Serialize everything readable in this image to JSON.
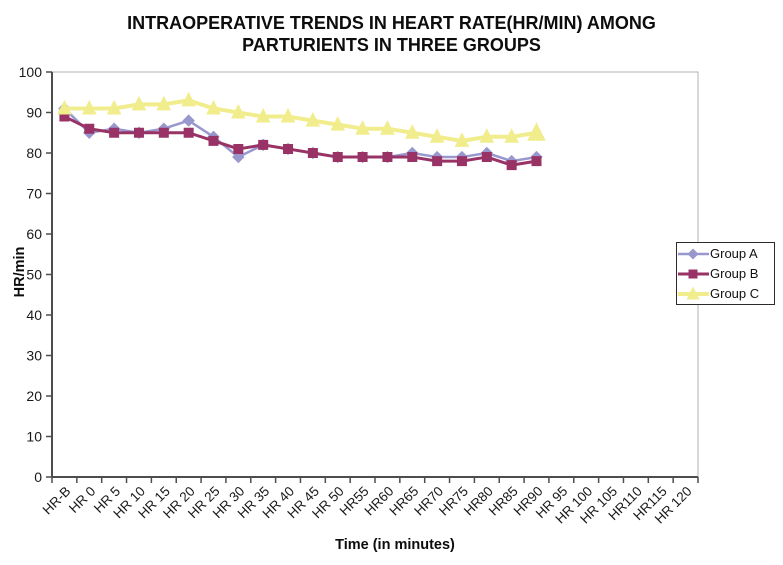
{
  "chart_data": {
    "type": "line",
    "title_line1": "INTRAOPERATIVE TRENDS IN HEART RATE(HR/MIN) AMONG",
    "title_line2": "PARTURIENTS IN THREE GROUPS",
    "xlabel": "Time (in minutes)",
    "ylabel": "HR/min",
    "ylim": [
      0,
      100
    ],
    "y_ticks": [
      0,
      10,
      20,
      30,
      40,
      50,
      60,
      70,
      80,
      90,
      100
    ],
    "grid": "off",
    "legend_position": "right",
    "categories": [
      "HR-B",
      "HR 0",
      "HR 5",
      "HR 10",
      "HR 15",
      "HR 20",
      "HR 25",
      "HR 30",
      "HR 35",
      "HR 40",
      "HR 45",
      "HR 50",
      "HR55",
      "HR60",
      "HR65",
      "HR70",
      "HR75",
      "HR80",
      "HR85",
      "HR90",
      "HR 95",
      "HR 100",
      "HR 105",
      "HR110",
      "HR115",
      "HR 120"
    ],
    "series": [
      {
        "name": "Group A",
        "color": "#9898CF",
        "marker": "diamond",
        "values": [
          91,
          85,
          86,
          85,
          86,
          88,
          84,
          79,
          82,
          81,
          80,
          79,
          79,
          79,
          80,
          79,
          79,
          80,
          78,
          79,
          null,
          null,
          null,
          null,
          null,
          null
        ]
      },
      {
        "name": "Group B",
        "color": "#993366",
        "marker": "square",
        "values": [
          89,
          86,
          85,
          85,
          85,
          85,
          83,
          81,
          82,
          81,
          80,
          79,
          79,
          79,
          79,
          78,
          78,
          79,
          77,
          78,
          null,
          null,
          null,
          null,
          null,
          null
        ]
      },
      {
        "name": "Group C",
        "color": "#F1ED8C",
        "marker": "triangle",
        "values": [
          91,
          91,
          91,
          92,
          92,
          93,
          91,
          90,
          89,
          89,
          88,
          87,
          86,
          86,
          85,
          84,
          83,
          84,
          84,
          85,
          null,
          null,
          null,
          null,
          null,
          null
        ]
      }
    ],
    "colors": {
      "axis": "#4d4d4d",
      "plot_border": "#b3b3b3",
      "tick_text": "#1a1a1a"
    }
  }
}
